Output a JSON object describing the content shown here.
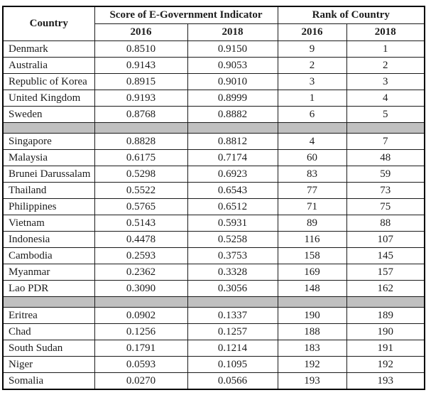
{
  "colors": {
    "separator_gray": "#c0c0c0",
    "border": "#000000",
    "text": "#1c1c1c",
    "background": "#ffffff"
  },
  "table": {
    "header": {
      "country": "Country",
      "score_group": "Score of E-Government Indicator",
      "rank_group": "Rank of Country",
      "score_2016": "2016",
      "score_2018": "2018",
      "rank_2016": "2016",
      "rank_2018": "2018"
    },
    "groups": [
      {
        "rows": [
          [
            "Denmark",
            "0.8510",
            "0.9150",
            "9",
            "1"
          ],
          [
            "Australia",
            "0.9143",
            "0.9053",
            "2",
            "2"
          ],
          [
            "Republic of Korea",
            "0.8915",
            "0.9010",
            "3",
            "3"
          ],
          [
            "United Kingdom",
            "0.9193",
            "0.8999",
            "1",
            "4"
          ],
          [
            "Sweden",
            "0.8768",
            "0.8882",
            "6",
            "5"
          ]
        ]
      },
      {
        "rows": [
          [
            "Singapore",
            "0.8828",
            "0.8812",
            "4",
            "7"
          ],
          [
            "Malaysia",
            "0.6175",
            "0.7174",
            "60",
            "48"
          ],
          [
            "Brunei Darussalam",
            "0.5298",
            "0.6923",
            "83",
            "59"
          ],
          [
            "Thailand",
            "0.5522",
            "0.6543",
            "77",
            "73"
          ],
          [
            "Philippines",
            "0.5765",
            "0.6512",
            "71",
            "75"
          ],
          [
            "Vietnam",
            "0.5143",
            "0.5931",
            "89",
            "88"
          ],
          [
            "Indonesia",
            "0.4478",
            "0.5258",
            "116",
            "107"
          ],
          [
            "Cambodia",
            "0.2593",
            "0.3753",
            "158",
            "145"
          ],
          [
            "Myanmar",
            "0.2362",
            "0.3328",
            "169",
            "157"
          ],
          [
            "Lao PDR",
            "0.3090",
            "0.3056",
            "148",
            "162"
          ]
        ]
      },
      {
        "rows": [
          [
            "Eritrea",
            "0.0902",
            "0.1337",
            "190",
            "189"
          ],
          [
            "Chad",
            "0.1256",
            "0.1257",
            "188",
            "190"
          ],
          [
            "South Sudan",
            "0.1791",
            "0.1214",
            "183",
            "191"
          ],
          [
            "Niger",
            "0.0593",
            "0.1095",
            "192",
            "192"
          ],
          [
            "Somalia",
            "0.0270",
            "0.0566",
            "193",
            "193"
          ]
        ]
      }
    ]
  },
  "chart_data": {
    "type": "table",
    "title": "",
    "columns": [
      "Country",
      "Score of E-Government Indicator 2016",
      "Score of E-Government Indicator 2018",
      "Rank of Country 2016",
      "Rank of Country 2018"
    ],
    "rows": [
      [
        "Denmark",
        0.851,
        0.915,
        9,
        1
      ],
      [
        "Australia",
        0.9143,
        0.9053,
        2,
        2
      ],
      [
        "Republic of Korea",
        0.8915,
        0.901,
        3,
        3
      ],
      [
        "United Kingdom",
        0.9193,
        0.8999,
        1,
        4
      ],
      [
        "Sweden",
        0.8768,
        0.8882,
        6,
        5
      ],
      [
        "Singapore",
        0.8828,
        0.8812,
        4,
        7
      ],
      [
        "Malaysia",
        0.6175,
        0.7174,
        60,
        48
      ],
      [
        "Brunei Darussalam",
        0.5298,
        0.6923,
        83,
        59
      ],
      [
        "Thailand",
        0.5522,
        0.6543,
        77,
        73
      ],
      [
        "Philippines",
        0.5765,
        0.6512,
        71,
        75
      ],
      [
        "Vietnam",
        0.5143,
        0.5931,
        89,
        88
      ],
      [
        "Indonesia",
        0.4478,
        0.5258,
        116,
        107
      ],
      [
        "Cambodia",
        0.2593,
        0.3753,
        158,
        145
      ],
      [
        "Myanmar",
        0.2362,
        0.3328,
        169,
        157
      ],
      [
        "Lao PDR",
        0.309,
        0.3056,
        148,
        162
      ],
      [
        "Eritrea",
        0.0902,
        0.1337,
        190,
        189
      ],
      [
        "Chad",
        0.1256,
        0.1257,
        188,
        190
      ],
      [
        "South Sudan",
        0.1791,
        0.1214,
        183,
        191
      ],
      [
        "Niger",
        0.0593,
        0.1095,
        192,
        192
      ],
      [
        "Somalia",
        0.027,
        0.0566,
        193,
        193
      ]
    ],
    "separator_rows_after": [
      "Sweden",
      "Lao PDR"
    ],
    "layout": "gray blank separator rows divide top-5 countries, ASEAN countries, and bottom-5 countries"
  }
}
